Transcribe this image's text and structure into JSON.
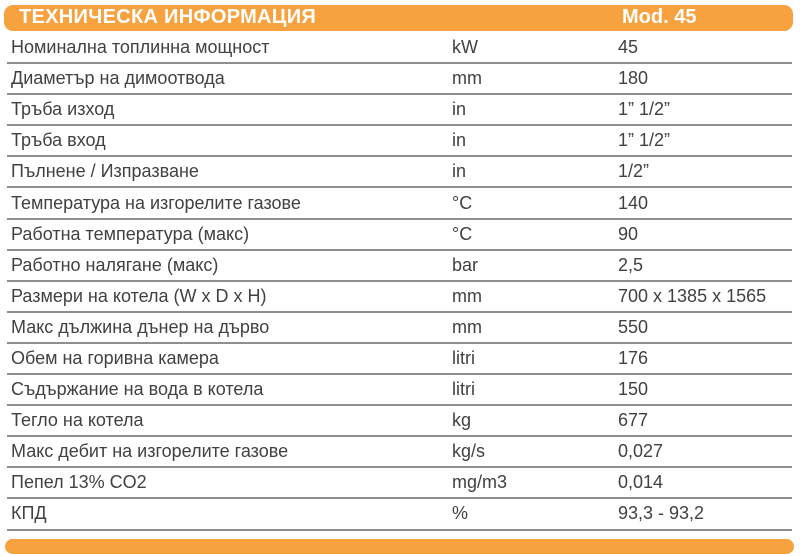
{
  "header": {
    "title": "ТЕХНИЧЕСКА ИНФОРМАЦИЯ",
    "model": "Mod. 45"
  },
  "colors": {
    "accent_orange": "#F7A23E",
    "row_line": "#8E8E8E",
    "text": "#414141",
    "header_text": "#FFFFFF"
  },
  "table": {
    "rows": [
      {
        "label": "Номинална топлинна мощност",
        "unit": "kW",
        "value": "45"
      },
      {
        "label": "Диаметър на димоотвода",
        "unit": "mm",
        "value": "180"
      },
      {
        "label": "Тръба изход",
        "unit": "in",
        "value": "1” 1/2”"
      },
      {
        "label": "Тръба вход",
        "unit": "in",
        "value": "1” 1/2”"
      },
      {
        "label": "Пълнене / Изпразване",
        "unit": "in",
        "value": "1/2”"
      },
      {
        "label": "Температура на изгорелите газове",
        "unit": "°C",
        "value": "140"
      },
      {
        "label": "Работна температура (макс)",
        "unit": "°C",
        "value": "90"
      },
      {
        "label": "Работно налягане (макс)",
        "unit": "bar",
        "value": "2,5"
      },
      {
        "label": "Размери на котела (W x D x H)",
        "unit": "mm",
        "value": "700 x 1385 x 1565"
      },
      {
        "label": "Макс дължина дънер на дърво",
        "unit": "mm",
        "value": "550"
      },
      {
        "label": "Обем на горивна камера",
        "unit": "litri",
        "value": "176"
      },
      {
        "label": "Съдържание на вода в котела",
        "unit": "litri",
        "value": "150"
      },
      {
        "label": "Тегло на котела",
        "unit": "kg",
        "value": "677"
      },
      {
        "label": "Макс дебит на изгорелите газове",
        "unit": "kg/s",
        "value": "0,027"
      },
      {
        "label": "Пепел 13% CO2",
        "unit": "mg/m3",
        "value": "0,014"
      },
      {
        "label": "КПД",
        "unit": "%",
        "value": "93,3 - 93,2"
      }
    ]
  }
}
